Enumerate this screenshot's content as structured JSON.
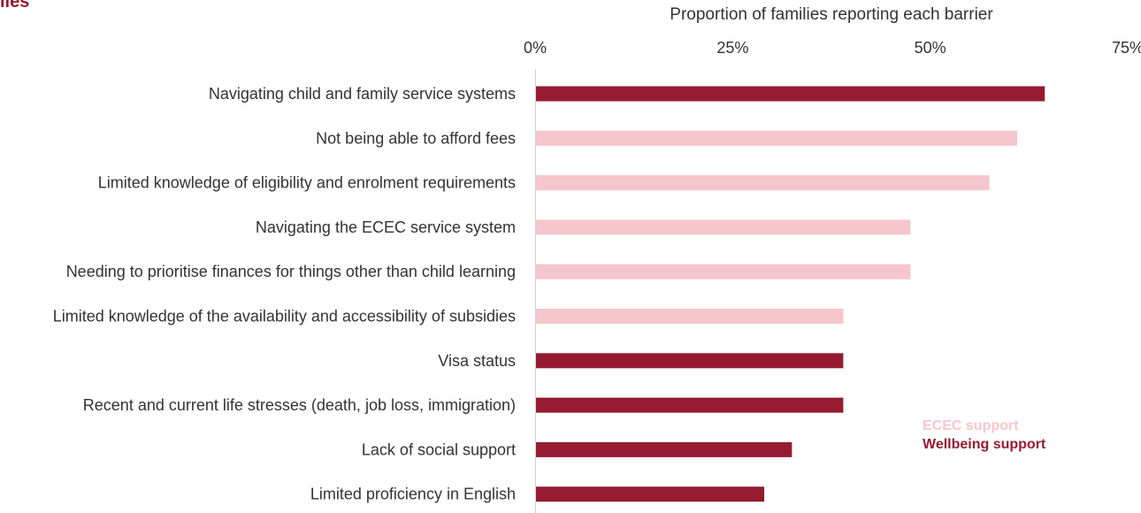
{
  "title_fragment": "lies",
  "chart_data": {
    "type": "bar",
    "orientation": "horizontal",
    "title": "",
    "xlabel": "Proportion of families reporting each barrier",
    "xlim": [
      0,
      75
    ],
    "x_ticks": [
      "0%",
      "25%",
      "50%",
      "75%"
    ],
    "categories": [
      "Navigating child and family service systems",
      "Not being able to afford fees",
      "Limited knowledge of eligibility and enrolment requirements",
      "Navigating the ECEC service system",
      "Needing to prioritise finances for things other than child learning",
      "Limited knowledge of the availability and accessibility of subsidies",
      "Visa status",
      "Recent and current life stresses (death, job loss, immigration)",
      "Lack of social support",
      "Limited proficiency in English"
    ],
    "values": [
      64.5,
      61,
      57.5,
      47.5,
      47.5,
      39,
      39,
      39,
      32.5,
      29
    ],
    "groups": [
      "Wellbeing support",
      "ECEC support",
      "ECEC support",
      "ECEC support",
      "ECEC support",
      "ECEC support",
      "Wellbeing support",
      "Wellbeing support",
      "Wellbeing support",
      "Wellbeing support"
    ],
    "legend": {
      "position": "bottom-right",
      "entries": [
        {
          "name": "ECEC support",
          "color": "#f5c6cc"
        },
        {
          "name": "Wellbeing support",
          "color": "#961b30"
        }
      ]
    },
    "grid": false
  },
  "colors": {
    "ecec": "#f5c6cc",
    "wellbeing": "#961b30",
    "axis": "#cfcfcf",
    "text": "#333333"
  }
}
